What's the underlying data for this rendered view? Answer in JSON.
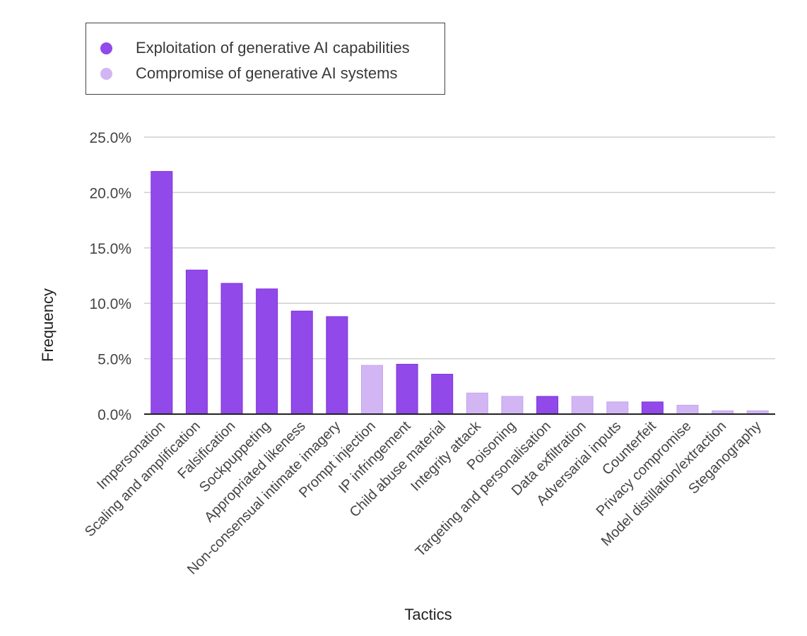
{
  "legend": {
    "items": [
      {
        "label": "Exploitation of generative AI capabilities",
        "color": "#9249ea"
      },
      {
        "label": "Compromise of generative AI systems",
        "color": "#d2b6f4"
      }
    ]
  },
  "chart_data": {
    "type": "bar",
    "title": "",
    "xlabel": "Tactics",
    "ylabel": "Frequency",
    "ylim": [
      0,
      25
    ],
    "yticks": [
      "0.0%",
      "5.0%",
      "10.0%",
      "15.0%",
      "20.0%",
      "25.0%"
    ],
    "ytick_values": [
      0,
      5,
      10,
      15,
      20,
      25
    ],
    "legend_position": "top-left",
    "grid": true,
    "colors": {
      "exploitation": "#9249ea",
      "compromise": "#d2b6f4"
    },
    "categories": [
      "Impersonation",
      "Scaling and amplification",
      "Falsification",
      "Sockpuppeting",
      "Appropriated likeness",
      "Non-consensual intimate imagery",
      "Prompt injection",
      "IP infringement",
      "Child abuse material",
      "Integrity attack",
      "Poisoning",
      "Targeting and personalisation",
      "Data exfiltration",
      "Adversarial inputs",
      "Counterfeit",
      "Privacy compromise",
      "Model distillation/extraction",
      "Steganography"
    ],
    "values": [
      21.9,
      13.0,
      11.8,
      11.3,
      9.3,
      8.8,
      4.4,
      4.5,
      3.6,
      1.9,
      1.6,
      1.6,
      1.6,
      1.1,
      1.1,
      0.8,
      0.3,
      0.3
    ],
    "groups": [
      "exploitation",
      "exploitation",
      "exploitation",
      "exploitation",
      "exploitation",
      "exploitation",
      "compromise",
      "exploitation",
      "exploitation",
      "compromise",
      "compromise",
      "exploitation",
      "compromise",
      "compromise",
      "exploitation",
      "compromise",
      "compromise",
      "compromise"
    ]
  }
}
